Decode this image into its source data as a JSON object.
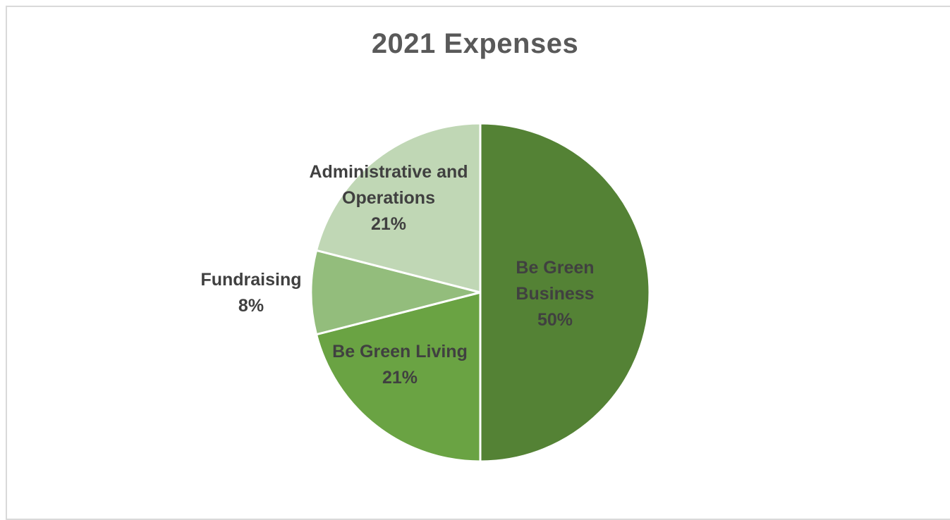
{
  "chart_data": {
    "type": "pie",
    "title": "2021 Expenses",
    "slices": [
      {
        "label_lines": [
          "Be Green",
          "Business"
        ],
        "percent_label": "50%",
        "value": 50,
        "color": "#548235",
        "label_color": "#404040",
        "label_position": "inside"
      },
      {
        "label_lines": [
          "Be Green Living"
        ],
        "percent_label": "21%",
        "value": 21,
        "color": "#6aa343",
        "label_color": "#404040",
        "label_position": "inside"
      },
      {
        "label_lines": [
          "Fundraising"
        ],
        "percent_label": "8%",
        "value": 8,
        "color": "#93bd7c",
        "label_color": "#404040",
        "label_position": "outside"
      },
      {
        "label_lines": [
          "Administrative and",
          "Operations"
        ],
        "percent_label": "21%",
        "value": 21,
        "color": "#c0d7b5",
        "label_color": "#404040",
        "label_position": "inside"
      }
    ]
  }
}
